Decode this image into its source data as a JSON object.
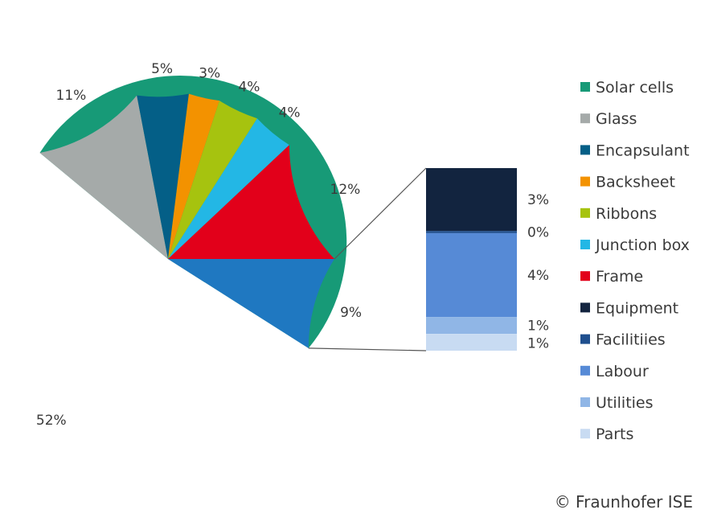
{
  "chart_data": {
    "type": "pie",
    "main": {
      "slices": [
        {
          "name": "Solar cells",
          "value": 52,
          "label": "52%",
          "color": "#179a77"
        },
        {
          "name": "Glass",
          "value": 11,
          "label": "11%",
          "color": "#a5aaa9"
        },
        {
          "name": "Encapsulant",
          "value": 5,
          "label": "5%",
          "color": "#045f87"
        },
        {
          "name": "Backsheet",
          "value": 3,
          "label": "3%",
          "color": "#f39200"
        },
        {
          "name": "Ribbons",
          "value": 4,
          "label": "4%",
          "color": "#a6c30f"
        },
        {
          "name": "Junction box",
          "value": 4,
          "label": "4%",
          "color": "#23b7e5"
        },
        {
          "name": "Frame",
          "value": 12,
          "label": "12%",
          "color": "#e2001a"
        },
        {
          "name": "",
          "value": 9,
          "label": "9%",
          "color": "#1f78c1"
        }
      ]
    },
    "breakdown": {
      "of_slice_label": "9%",
      "segments": [
        {
          "name": "Equipment",
          "value": 3,
          "label": "3%",
          "color": "#12243f"
        },
        {
          "name": "Facilitiies",
          "value": 0.1,
          "label": "0%",
          "color": "#1f4f8e"
        },
        {
          "name": "Labour",
          "value": 4,
          "label": "4%",
          "color": "#568ad6"
        },
        {
          "name": "Utilities",
          "value": 0.8,
          "label": "1%",
          "color": "#90b6e6"
        },
        {
          "name": "Parts",
          "value": 0.8,
          "label": "1%",
          "color": "#c8dbf2"
        }
      ]
    },
    "legend": {
      "placement": "right",
      "entries": [
        {
          "label": "Solar cells",
          "color": "#179a77"
        },
        {
          "label": "Glass",
          "color": "#a5aaa9"
        },
        {
          "label": "Encapsulant",
          "color": "#045f87"
        },
        {
          "label": "Backsheet",
          "color": "#f39200"
        },
        {
          "label": "Ribbons",
          "color": "#a6c30f"
        },
        {
          "label": "Junction box",
          "color": "#23b7e5"
        },
        {
          "label": "Frame",
          "color": "#e2001a"
        },
        {
          "label": "Equipment",
          "color": "#12243f"
        },
        {
          "label": "Facilitiies",
          "color": "#1f4f8e"
        },
        {
          "label": "Labour",
          "color": "#568ad6"
        },
        {
          "label": "Utilities",
          "color": "#90b6e6"
        },
        {
          "label": "Parts",
          "color": "#c8dbf2"
        }
      ]
    }
  },
  "copyright": "© Fraunhofer ISE"
}
